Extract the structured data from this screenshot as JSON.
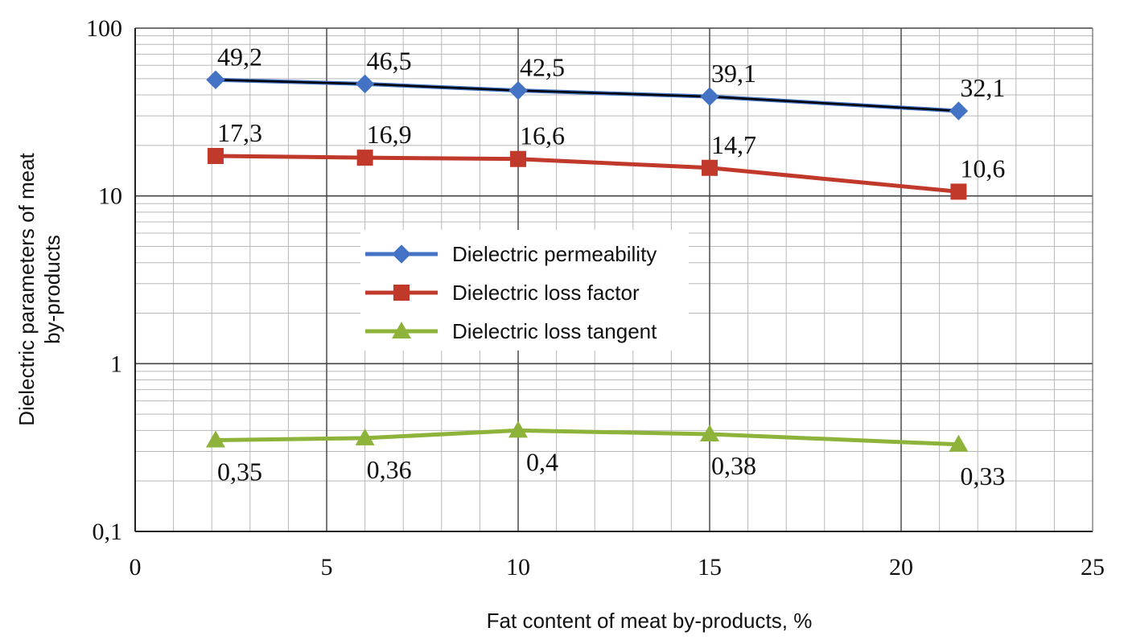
{
  "chart_data": {
    "type": "line",
    "title": "",
    "xlabel": "Fat content of meat by-products, %",
    "ylabel_lines": [
      "Dielectric parameters of meat",
      "by-products"
    ],
    "x_scale": "linear",
    "y_scale": "log",
    "xlim": [
      0,
      25
    ],
    "ylim": [
      0.1,
      100
    ],
    "x_ticks": [
      0,
      5,
      10,
      15,
      20,
      25
    ],
    "x_tick_labels": [
      "0",
      "5",
      "10",
      "15",
      "20",
      "25"
    ],
    "y_ticks": [
      0.1,
      1,
      10,
      100
    ],
    "y_tick_labels": [
      "0,1",
      "1",
      "10",
      "100"
    ],
    "grid": true,
    "legend_position": "center",
    "x": [
      2.1,
      6,
      10,
      15,
      21.5
    ],
    "series": [
      {
        "name": "Dielectric permeability",
        "marker": "diamond",
        "color": "#4472C4",
        "values": [
          49.2,
          46.5,
          42.5,
          39.1,
          32.1
        ],
        "labels": [
          "49,2",
          "46,5",
          "42,5",
          "39,1",
          "32,1"
        ],
        "label_position": "above"
      },
      {
        "name": "Dielectric loss factor",
        "marker": "square",
        "color": "#C0392B",
        "values": [
          17.3,
          16.9,
          16.6,
          14.7,
          10.6
        ],
        "labels": [
          "17,3",
          "16,9",
          "16,6",
          "14,7",
          "10,6"
        ],
        "label_position": "above"
      },
      {
        "name": "Dielectric loss tangent",
        "marker": "triangle",
        "color": "#8DB33A",
        "values": [
          0.35,
          0.36,
          0.4,
          0.38,
          0.33
        ],
        "labels": [
          "0,35",
          "0,36",
          "0,4",
          "0,38",
          "0,33"
        ],
        "label_position": "below"
      }
    ],
    "trendline_color": "#000000"
  }
}
